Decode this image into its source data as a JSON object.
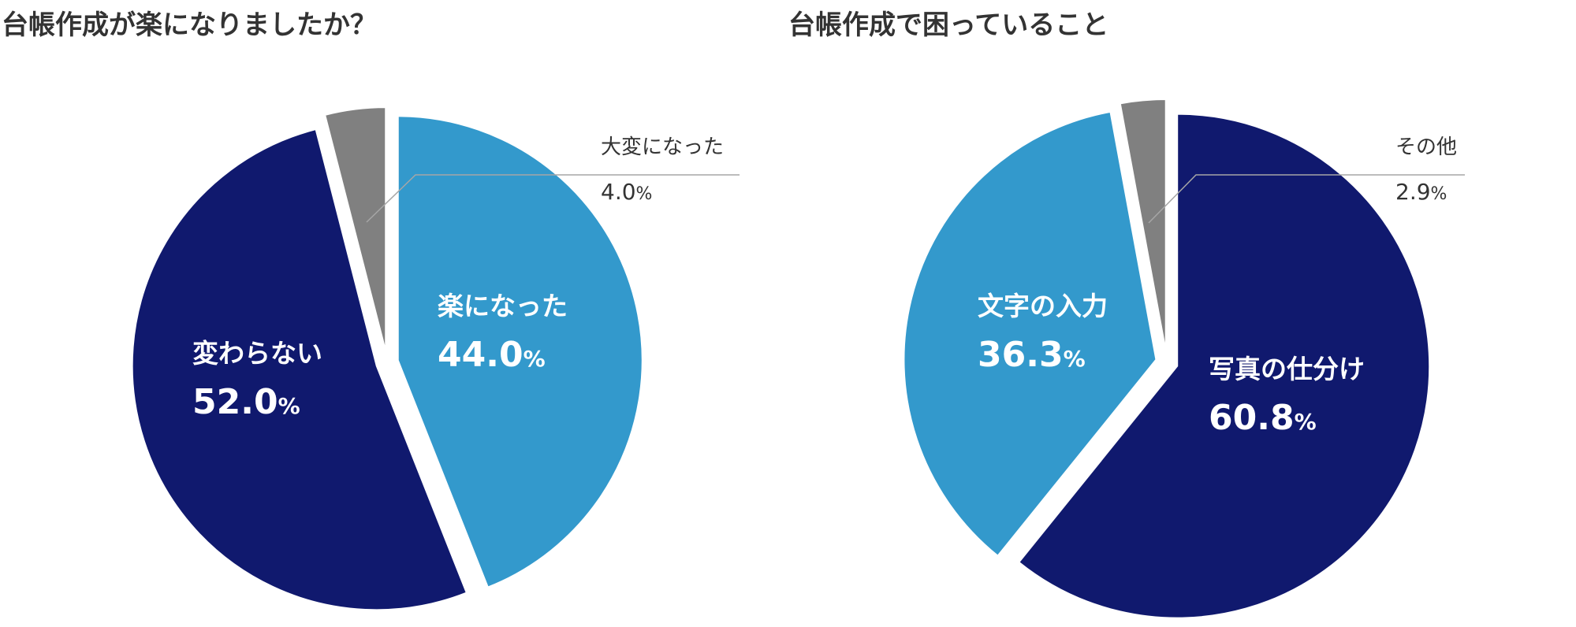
{
  "chart_data": [
    {
      "type": "pie",
      "title": "台帳作成が楽になりましたか？",
      "slices": [
        {
          "label": "楽になった",
          "value": 44.0,
          "display": "44.0",
          "color": "#3399cc"
        },
        {
          "label": "変わらない",
          "value": 52.0,
          "display": "52.0",
          "color": "#10196e"
        },
        {
          "label": "大変になった",
          "value": 4.0,
          "display": "4.0",
          "color": "#808080"
        }
      ],
      "unit": "%",
      "start_angle_deg": 0,
      "direction": "clockwise"
    },
    {
      "type": "pie",
      "title": "台帳作成で困っていること",
      "slices": [
        {
          "label": "写真の仕分け",
          "value": 60.8,
          "display": "60.8",
          "color": "#10196e"
        },
        {
          "label": "文字の入力",
          "value": 36.3,
          "display": "36.3",
          "color": "#3399cc"
        },
        {
          "label": "その他",
          "value": 2.9,
          "display": "2.9",
          "color": "#808080"
        }
      ],
      "unit": "%",
      "start_angle_deg": 0,
      "direction": "clockwise"
    }
  ]
}
